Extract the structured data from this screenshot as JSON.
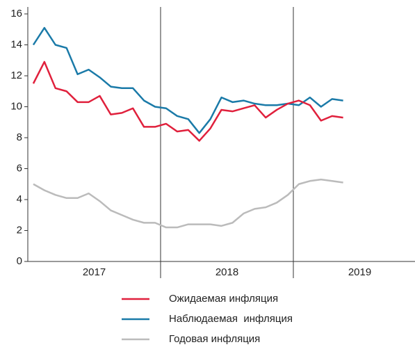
{
  "chart_data": {
    "type": "line",
    "categories": [
      null,
      null,
      null,
      null,
      null,
      null,
      null,
      null,
      null,
      null,
      null,
      null,
      null,
      null,
      null,
      null,
      null,
      null,
      null,
      null,
      null,
      null,
      null,
      null,
      null,
      null,
      null,
      null,
      null
    ],
    "year_labels": [
      "2017",
      "2018",
      "2019"
    ],
    "series": [
      {
        "name": "Ожидаемая инфляция",
        "color": "#e0203c",
        "values": [
          11.5,
          12.9,
          11.2,
          11.0,
          10.3,
          10.3,
          10.7,
          9.5,
          9.6,
          9.9,
          8.7,
          8.7,
          8.9,
          8.4,
          8.5,
          7.8,
          8.6,
          9.8,
          9.7,
          9.9,
          10.1,
          9.3,
          9.8,
          10.2,
          10.4,
          10.1,
          9.1,
          9.4,
          9.3
        ]
      },
      {
        "name": "Наблюдаемая  инфляция",
        "color": "#1a7aa8",
        "values": [
          14.0,
          15.1,
          14.0,
          13.8,
          12.1,
          12.4,
          11.9,
          11.3,
          11.2,
          11.2,
          10.4,
          10.0,
          9.9,
          9.4,
          9.2,
          8.3,
          9.2,
          10.6,
          10.3,
          10.4,
          10.2,
          10.1,
          10.1,
          10.2,
          10.1,
          10.6,
          10.0,
          10.5,
          10.4
        ]
      },
      {
        "name": "Годовая инфляция",
        "color": "#bbbbbb",
        "values": [
          5.0,
          4.6,
          4.3,
          4.1,
          4.1,
          4.4,
          3.9,
          3.3,
          3.0,
          2.7,
          2.5,
          2.5,
          2.2,
          2.2,
          2.4,
          2.4,
          2.4,
          2.3,
          2.5,
          3.1,
          3.4,
          3.5,
          3.8,
          4.3,
          5.0,
          5.2,
          5.3,
          5.2,
          5.1
        ]
      }
    ],
    "ylim": [
      0,
      16
    ],
    "yticks": [
      0,
      2,
      4,
      6,
      8,
      10,
      12,
      14,
      16
    ]
  }
}
